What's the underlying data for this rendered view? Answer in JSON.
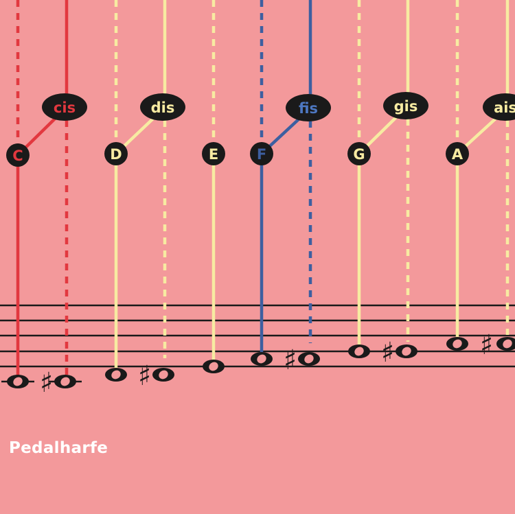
{
  "caption": "Pedalharfe",
  "colors": {
    "background": "#f3999b",
    "c_string": "#e2383f",
    "f_string": "#3d5fa0",
    "other_string": "#f7eba2",
    "staff": "#1a1a1a",
    "badge": "#1a1a1a"
  },
  "sharp_symbol": "♯",
  "notes": [
    {
      "id": "c",
      "natural": "C",
      "sharp": "cis",
      "color": "#e2383f"
    },
    {
      "id": "d",
      "natural": "D",
      "sharp": "dis",
      "color": "#f7eba2"
    },
    {
      "id": "e",
      "natural": "E",
      "sharp": "",
      "color": "#f7eba2"
    },
    {
      "id": "f",
      "natural": "F",
      "sharp": "fis",
      "color": "#3d5fa0"
    },
    {
      "id": "g",
      "natural": "G",
      "sharp": "gis",
      "color": "#f7eba2"
    },
    {
      "id": "a",
      "natural": "A",
      "sharp": "ais",
      "color": "#f7eba2"
    }
  ]
}
